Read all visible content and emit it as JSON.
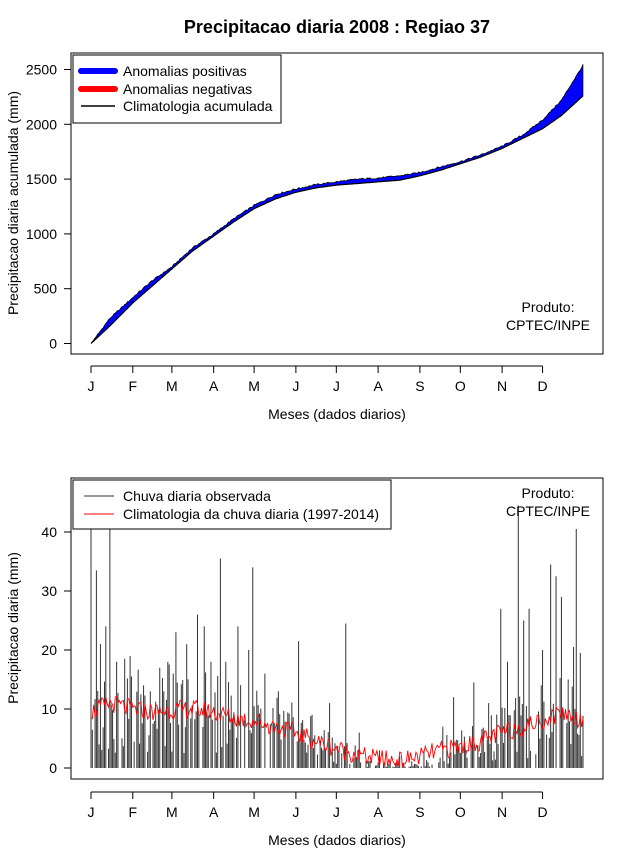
{
  "figure": {
    "title": "Precipitacao diaria 2008 : Regiao 37"
  },
  "chart_data": [
    {
      "type": "area",
      "name": "accumulated",
      "title": "Precipitacao diaria 2008 : Regiao 37",
      "xlabel": "Meses (dados diarios)",
      "ylabel": "Precipitacao diaria acumulada (mm)",
      "x_ticks": [
        "J",
        "F",
        "M",
        "A",
        "M",
        "J",
        "J",
        "A",
        "S",
        "O",
        "N",
        "D"
      ],
      "x_tick_days": [
        1,
        32,
        61,
        92,
        122,
        153,
        183,
        214,
        245,
        275,
        306,
        336
      ],
      "xlim": [
        1,
        366
      ],
      "ylim": [
        0,
        2550
      ],
      "y_ticks": [
        0,
        500,
        1000,
        1500,
        2000,
        2500
      ],
      "grid": false,
      "legend": {
        "position": "top-left",
        "entries": [
          {
            "label": "Anomalias positivas",
            "color": "#0000ff"
          },
          {
            "label": "Anomalias negativas",
            "color": "#ff0000"
          },
          {
            "label": "Climatologia acumulada",
            "color": "#000000"
          }
        ]
      },
      "annotation": [
        "Produto:",
        "CPTEC/INPE"
      ],
      "climatology_cumulative": {
        "days": [
          1,
          15,
          32,
          46,
          61,
          76,
          92,
          107,
          122,
          138,
          153,
          168,
          183,
          199,
          214,
          230,
          245,
          260,
          275,
          290,
          306,
          321,
          336,
          350,
          366
        ],
        "values": [
          0,
          160,
          370,
          520,
          680,
          840,
          980,
          1110,
          1230,
          1320,
          1380,
          1420,
          1445,
          1460,
          1475,
          1490,
          1530,
          1580,
          1640,
          1700,
          1780,
          1870,
          1960,
          2080,
          2260
        ]
      },
      "observed_cumulative": {
        "days": [
          1,
          15,
          32,
          46,
          61,
          76,
          92,
          107,
          122,
          138,
          153,
          168,
          183,
          199,
          214,
          230,
          245,
          260,
          275,
          290,
          306,
          321,
          336,
          350,
          366
        ],
        "values": [
          0,
          230,
          420,
          570,
          700,
          870,
          1000,
          1140,
          1260,
          1360,
          1410,
          1450,
          1475,
          1500,
          1510,
          1530,
          1560,
          1610,
          1660,
          1720,
          1800,
          1900,
          2040,
          2220,
          2540
        ]
      }
    },
    {
      "type": "bar",
      "name": "daily",
      "xlabel": "Meses (dados diarios)",
      "ylabel": "Precipitacao diaria (mm)",
      "x_ticks": [
        "J",
        "F",
        "M",
        "A",
        "M",
        "J",
        "J",
        "A",
        "S",
        "O",
        "N",
        "D"
      ],
      "x_tick_days": [
        1,
        32,
        61,
        92,
        122,
        153,
        183,
        214,
        245,
        275,
        306,
        336
      ],
      "xlim": [
        1,
        366
      ],
      "ylim": [
        -1.7,
        48.5
      ],
      "y_ticks": [
        0,
        10,
        20,
        30,
        40
      ],
      "grid": false,
      "legend": {
        "position": "top-left",
        "entries": [
          {
            "label": "Chuva diaria observada",
            "color": "#333333"
          },
          {
            "label": "Climatologia da chuva diaria (1997-2014)",
            "color": "#ff0000"
          }
        ]
      },
      "annotation": [
        "Produto:",
        "CPTEC/INPE"
      ],
      "observed_spikes": [
        {
          "day": 1,
          "value": 40.5
        },
        {
          "day": 5,
          "value": 33.5
        },
        {
          "day": 8,
          "value": 21
        },
        {
          "day": 12,
          "value": 24
        },
        {
          "day": 15,
          "value": 43
        },
        {
          "day": 20,
          "value": 18
        },
        {
          "day": 30,
          "value": 19
        },
        {
          "day": 40,
          "value": 14
        },
        {
          "day": 45,
          "value": 13
        },
        {
          "day": 52,
          "value": 17
        },
        {
          "day": 58,
          "value": 18
        },
        {
          "day": 64,
          "value": 23
        },
        {
          "day": 72,
          "value": 21
        },
        {
          "day": 80,
          "value": 26
        },
        {
          "day": 85,
          "value": 24
        },
        {
          "day": 90,
          "value": 18
        },
        {
          "day": 97,
          "value": 35.5
        },
        {
          "day": 101,
          "value": 18
        },
        {
          "day": 110,
          "value": 24
        },
        {
          "day": 118,
          "value": 20
        },
        {
          "day": 121,
          "value": 34
        },
        {
          "day": 130,
          "value": 16
        },
        {
          "day": 140,
          "value": 13
        },
        {
          "day": 155,
          "value": 21.5
        },
        {
          "day": 165,
          "value": 9
        },
        {
          "day": 178,
          "value": 11
        },
        {
          "day": 190,
          "value": 24.5
        },
        {
          "day": 200,
          "value": 6
        },
        {
          "day": 215,
          "value": 3
        },
        {
          "day": 230,
          "value": 2
        },
        {
          "day": 248,
          "value": 3
        },
        {
          "day": 262,
          "value": 7
        },
        {
          "day": 270,
          "value": 12
        },
        {
          "day": 285,
          "value": 14.5
        },
        {
          "day": 296,
          "value": 11
        },
        {
          "day": 305,
          "value": 27
        },
        {
          "day": 310,
          "value": 18
        },
        {
          "day": 318,
          "value": 44.5
        },
        {
          "day": 322,
          "value": 25
        },
        {
          "day": 326,
          "value": 27
        },
        {
          "day": 336,
          "value": 20
        },
        {
          "day": 342,
          "value": 34.5
        },
        {
          "day": 346,
          "value": 32.5
        },
        {
          "day": 350,
          "value": 29
        },
        {
          "day": 355,
          "value": 15
        },
        {
          "day": 359,
          "value": 20.5
        },
        {
          "day": 361,
          "value": 40.5
        },
        {
          "day": 364,
          "value": 19.5
        }
      ],
      "climatology_daily": {
        "days": [
          1,
          15,
          32,
          46,
          61,
          76,
          92,
          107,
          122,
          138,
          153,
          168,
          183,
          199,
          214,
          230,
          245,
          260,
          275,
          290,
          306,
          321,
          336,
          350,
          366
        ],
        "values": [
          9.5,
          11,
          10,
          9.5,
          9.8,
          10,
          9.5,
          8.5,
          8,
          7,
          6,
          4.5,
          3.3,
          2.2,
          1.5,
          1.2,
          2,
          3,
          3.5,
          4.5,
          6,
          7,
          8,
          9.5,
          8
        ]
      }
    }
  ]
}
